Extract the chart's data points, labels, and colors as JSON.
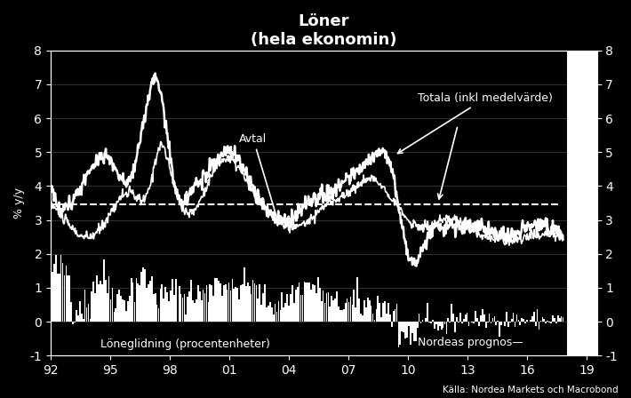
{
  "title": "Löner\n(hela ekonomin)",
  "ylabel_left": "% y/y",
  "source": "Källa: Nordea Markets och Macrobond",
  "annotation_avtal": "Avtal",
  "annotation_totala": "Totala (inkl medelvärde)",
  "annotation_loneglidning": "Löneglidning (procentenheter)",
  "annotation_prognos": "Nordeas prognos",
  "dashed_line_y": 3.45,
  "ylim": [
    -1,
    8
  ],
  "xlim_start": 1992.0,
  "xlim_end": 2019.5,
  "forecast_start": 2018.0,
  "xticks": [
    1992,
    1995,
    1998,
    2001,
    2004,
    2007,
    2010,
    2013,
    2016,
    2019
  ],
  "xtick_labels": [
    "92",
    "95",
    "98",
    "01",
    "04",
    "07",
    "10",
    "13",
    "16",
    "19"
  ],
  "yticks": [
    -1,
    0,
    1,
    2,
    3,
    4,
    5,
    6,
    7,
    8
  ],
  "bg_color": "#000000",
  "line_color": "#ffffff",
  "bar_color": "#ffffff",
  "text_color": "#ffffff",
  "dashed_color": "#ffffff",
  "forecast_color": "#ffffff"
}
